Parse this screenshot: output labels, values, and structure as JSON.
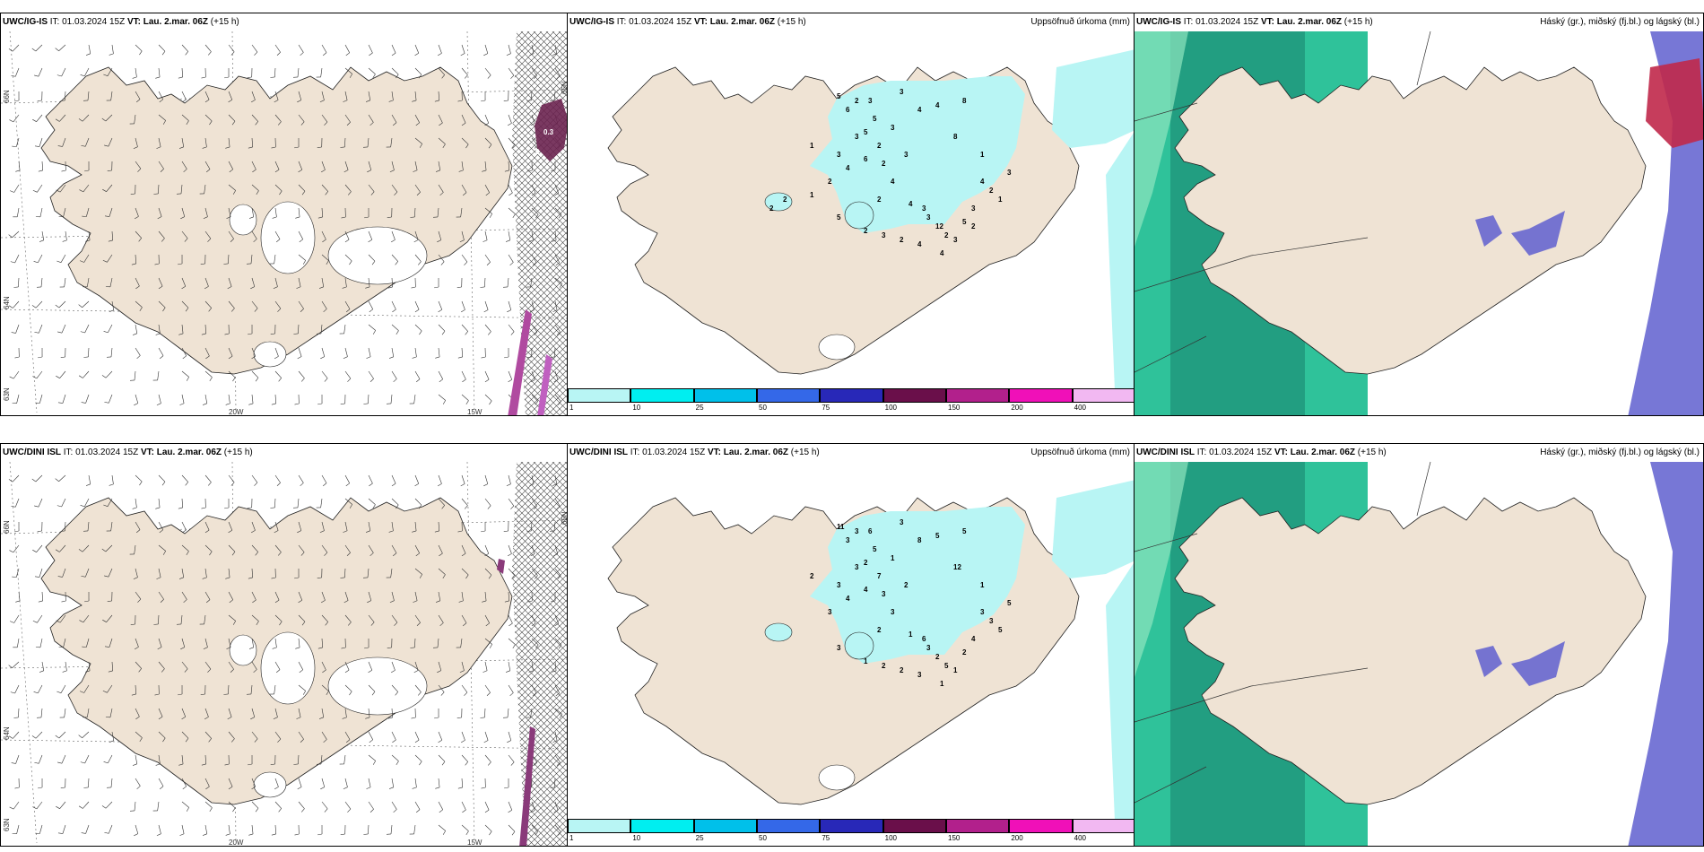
{
  "colors": {
    "land": "#efe3d4",
    "precip": "#b8f5f4",
    "stripe_dark": "#1c8f76",
    "stripe_mid": "#2fc29a",
    "stripe_light": "#8fe5bf",
    "low_cloud": "#5f5fcf",
    "high_cloud": "#c0284a"
  },
  "wind_panels": [
    {
      "model": "UWC/IG-IS",
      "it": "IT: 01.03.2024 15Z",
      "vt": "VT: Lau. 2.mar. 06Z",
      "lead": "(+15 h)",
      "lat_labels": [
        "66N",
        "64N",
        "65N",
        "63N"
      ],
      "lon_labels": [
        "20W",
        "15W"
      ],
      "value_labels": [
        "0.3",
        "2"
      ]
    },
    {
      "model": "UWC/DINI ISL",
      "it": "IT: 01.03.2024 15Z",
      "vt": "VT: Lau. 2.mar. 06Z",
      "lead": "(+15 h)",
      "lat_labels": [
        "66N",
        "64N",
        "65N",
        "63N"
      ],
      "lon_labels": [
        "20W",
        "15W"
      ],
      "value_labels": []
    }
  ],
  "precip_panels": [
    {
      "model": "UWC/IG-IS",
      "it": "IT: 01.03.2024 15Z",
      "vt": "VT: Lau. 2.mar. 06Z",
      "lead": "(+15 h)",
      "title_right": "Uppsöfnuð úrkoma (mm)",
      "values": [
        "5",
        "6",
        "2",
        "3",
        "5",
        "3",
        "4",
        "4",
        "8",
        "3",
        "5",
        "2",
        "3",
        "1",
        "3",
        "4",
        "6",
        "2",
        "3",
        "8",
        "1",
        "2",
        "4",
        "2",
        "4",
        "3",
        "3",
        "12",
        "2",
        "5",
        "3",
        "4",
        "2",
        "1",
        "3",
        "5",
        "2",
        "3",
        "2",
        "4",
        "4",
        "3",
        "2",
        "1",
        "2",
        "2"
      ]
    },
    {
      "model": "UWC/DINI ISL",
      "it": "IT: 01.03.2024 15Z",
      "vt": "VT: Lau. 2.mar. 06Z",
      "lead": "(+15 h)",
      "title_right": "Uppsöfnuð úrkoma (mm)",
      "values": [
        "11",
        "3",
        "3",
        "6",
        "5",
        "3",
        "8",
        "5",
        "5",
        "3",
        "2",
        "7",
        "1",
        "2",
        "3",
        "4",
        "4",
        "3",
        "2",
        "12",
        "1",
        "3",
        "3",
        "2",
        "1",
        "6",
        "3",
        "2",
        "5",
        "2",
        "4",
        "3",
        "3",
        "5",
        "5",
        "3",
        "1",
        "2",
        "2",
        "3",
        "1",
        "1"
      ]
    }
  ],
  "cloud_panels": [
    {
      "model": "UWC/IG-IS",
      "it": "IT: 01.03.2024 15Z",
      "vt": "VT: Lau. 2.mar. 06Z",
      "lead": "(+15 h)",
      "title_right": "Háský (gr.), miðský (fj.bl.) og lágský (bl.)"
    },
    {
      "model": "UWC/DINI ISL",
      "it": "IT: 01.03.2024 15Z",
      "vt": "VT: Lau. 2.mar. 06Z",
      "lead": "(+15 h)",
      "title_right": "Háský (gr.), miðský (fj.bl.) og lágský (bl.)"
    }
  ],
  "colorbar": {
    "ticks": [
      "1",
      "10",
      "25",
      "50",
      "75",
      "100",
      "150",
      "200",
      "400"
    ],
    "colors": [
      "#b8f5f4",
      "#00eef0",
      "#00c0ea",
      "#3468e8",
      "#2828b8",
      "#6a0f4a",
      "#b2208c",
      "#f010b8",
      "#f2b8f2"
    ]
  }
}
